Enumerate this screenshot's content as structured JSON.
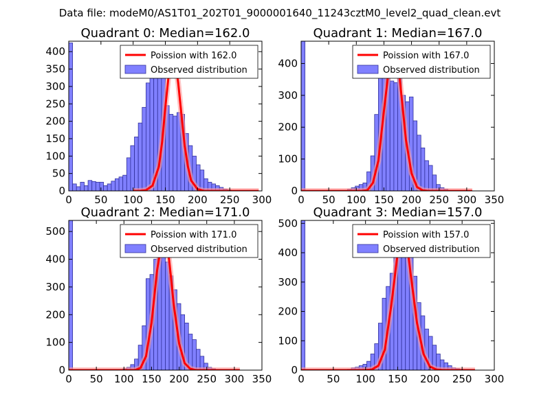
{
  "figure": {
    "suptitle": "Data file: modeM0/AS1T01_202T01_9000001640_11243cztM0_level2_quad_clean.evt"
  },
  "legend": {
    "poisson_prefix": "Poission with ",
    "observed": "Observed distribution"
  },
  "colors": {
    "bar_fill": "#8080ff",
    "bar_edge": "#30309a",
    "poisson_line": "#ff0000",
    "poisson_line_faint": "#ff9999"
  },
  "chart_data": [
    {
      "type": "bar",
      "title": "Quadrant 0: Median=162.0",
      "median_label": "162.0",
      "xlim": [
        0,
        300
      ],
      "ylim": [
        0,
        430
      ],
      "xticks": [
        "0",
        "50",
        "100",
        "150",
        "200",
        "250",
        "300"
      ],
      "yticks": [
        "0",
        "50",
        "100",
        "150",
        "200",
        "250",
        "300",
        "350",
        "400"
      ],
      "ytick_values": [
        0,
        50,
        100,
        150,
        200,
        250,
        300,
        350,
        400
      ],
      "xtick_values": [
        0,
        50,
        100,
        150,
        200,
        250,
        300
      ],
      "bin_width": 6,
      "bin_starts": [
        0,
        6,
        12,
        18,
        24,
        30,
        36,
        42,
        48,
        54,
        60,
        66,
        72,
        78,
        84,
        90,
        96,
        102,
        108,
        114,
        120,
        126,
        132,
        138,
        144,
        150,
        156,
        162,
        168,
        174,
        180,
        186,
        192,
        198,
        204,
        210,
        216,
        222,
        228,
        234,
        240,
        246,
        252,
        258,
        264,
        270,
        276
      ],
      "bin_counts": [
        425,
        20,
        12,
        25,
        15,
        30,
        27,
        25,
        25,
        15,
        20,
        28,
        35,
        40,
        45,
        95,
        130,
        155,
        195,
        240,
        310,
        370,
        350,
        335,
        325,
        245,
        220,
        215,
        225,
        220,
        165,
        130,
        100,
        75,
        60,
        35,
        25,
        20,
        15,
        10,
        5,
        3,
        2,
        2,
        1,
        1,
        0
      ],
      "poisson_x": [
        100,
        110,
        120,
        130,
        140,
        145,
        150,
        155,
        160,
        162,
        165,
        170,
        175,
        180,
        185,
        190,
        200,
        210,
        220,
        240,
        260,
        280,
        295
      ],
      "poisson_y": [
        0,
        0,
        2,
        15,
        70,
        140,
        240,
        330,
        385,
        390,
        380,
        310,
        220,
        130,
        70,
        30,
        5,
        0,
        0,
        0,
        0,
        0,
        0
      ]
    },
    {
      "type": "bar",
      "title": "Quadrant 1: Median=167.0",
      "median_label": "167.0",
      "xlim": [
        0,
        350
      ],
      "ylim": [
        0,
        470
      ],
      "xticks": [
        "0",
        "50",
        "100",
        "150",
        "200",
        "250",
        "300",
        "350"
      ],
      "yticks": [
        "0",
        "100",
        "200",
        "300",
        "400"
      ],
      "ytick_values": [
        0,
        100,
        200,
        300,
        400
      ],
      "xtick_values": [
        0,
        50,
        100,
        150,
        200,
        250,
        300,
        350
      ],
      "bin_width": 7,
      "bin_starts": [
        0,
        7,
        14,
        21,
        28,
        35,
        42,
        49,
        56,
        63,
        70,
        77,
        84,
        91,
        98,
        105,
        112,
        119,
        126,
        133,
        140,
        147,
        154,
        161,
        168,
        175,
        182,
        189,
        196,
        203,
        210,
        217,
        224,
        231,
        238,
        245,
        252,
        259,
        266,
        273,
        280
      ],
      "bin_counts": [
        470,
        0,
        0,
        0,
        0,
        0,
        0,
        0,
        0,
        0,
        0,
        2,
        5,
        10,
        15,
        20,
        25,
        60,
        110,
        240,
        360,
        410,
        390,
        345,
        340,
        370,
        300,
        280,
        295,
        220,
        175,
        135,
        95,
        80,
        50,
        20,
        10,
        5,
        2,
        1,
        0
      ],
      "poisson_x": [
        0,
        100,
        110,
        120,
        130,
        140,
        150,
        160,
        167,
        175,
        180,
        190,
        200,
        210,
        220,
        230,
        250,
        280,
        310
      ],
      "poisson_y": [
        0,
        0,
        0,
        2,
        25,
        95,
        250,
        400,
        445,
        410,
        330,
        160,
        55,
        12,
        2,
        0,
        0,
        0,
        0
      ]
    },
    {
      "type": "bar",
      "title": "Quadrant 2: Median=171.0",
      "median_label": "171.0",
      "xlim": [
        0,
        350
      ],
      "ylim": [
        0,
        540
      ],
      "xticks": [
        "0",
        "50",
        "100",
        "150",
        "200",
        "250",
        "300",
        "350"
      ],
      "yticks": [
        "0",
        "100",
        "200",
        "300",
        "400",
        "500"
      ],
      "ytick_values": [
        0,
        100,
        200,
        300,
        400,
        500
      ],
      "xtick_values": [
        0,
        50,
        100,
        150,
        200,
        250,
        300,
        350
      ],
      "bin_width": 7,
      "bin_starts": [
        0,
        7,
        14,
        21,
        28,
        35,
        42,
        49,
        56,
        63,
        70,
        77,
        84,
        91,
        98,
        105,
        112,
        119,
        126,
        133,
        140,
        147,
        154,
        161,
        168,
        175,
        182,
        189,
        196,
        203,
        210,
        217,
        224,
        231,
        238,
        245,
        252,
        259,
        266,
        273,
        280
      ],
      "bin_counts": [
        540,
        0,
        0,
        0,
        0,
        0,
        0,
        0,
        0,
        0,
        0,
        0,
        0,
        2,
        5,
        10,
        20,
        40,
        90,
        160,
        330,
        345,
        400,
        450,
        430,
        390,
        340,
        290,
        240,
        200,
        170,
        130,
        110,
        75,
        50,
        25,
        10,
        5,
        2,
        1,
        0
      ],
      "poisson_x": [
        0,
        100,
        110,
        120,
        130,
        140,
        150,
        160,
        171,
        180,
        185,
        190,
        200,
        210,
        220,
        230,
        250,
        280,
        310
      ],
      "poisson_y": [
        0,
        0,
        0,
        0,
        8,
        50,
        170,
        360,
        495,
        430,
        340,
        240,
        95,
        25,
        5,
        0,
        0,
        0,
        0
      ]
    },
    {
      "type": "bar",
      "title": "Quadrant 3: Median=157.0",
      "median_label": "157.0",
      "xlim": [
        0,
        300
      ],
      "ylim": [
        0,
        510
      ],
      "xticks": [
        "0",
        "50",
        "100",
        "150",
        "200",
        "250",
        "300"
      ],
      "yticks": [
        "0",
        "100",
        "200",
        "300",
        "400",
        "500"
      ],
      "ytick_values": [
        0,
        100,
        200,
        300,
        400,
        500
      ],
      "xtick_values": [
        0,
        50,
        100,
        150,
        200,
        250,
        300
      ],
      "bin_width": 6,
      "bin_starts": [
        0,
        6,
        12,
        18,
        24,
        30,
        36,
        42,
        48,
        54,
        60,
        66,
        72,
        78,
        84,
        90,
        96,
        102,
        108,
        114,
        120,
        126,
        132,
        138,
        144,
        150,
        156,
        162,
        168,
        174,
        180,
        186,
        192,
        198,
        204,
        210,
        216,
        222,
        228,
        234,
        240,
        246,
        252,
        258,
        264,
        270
      ],
      "bin_counts": [
        510,
        0,
        0,
        0,
        0,
        0,
        0,
        0,
        0,
        0,
        0,
        0,
        3,
        8,
        10,
        15,
        20,
        30,
        55,
        90,
        160,
        245,
        285,
        330,
        400,
        470,
        430,
        450,
        400,
        320,
        230,
        185,
        140,
        115,
        85,
        55,
        35,
        25,
        15,
        8,
        5,
        3,
        2,
        1,
        0,
        0
      ],
      "poisson_x": [
        0,
        90,
        100,
        110,
        120,
        130,
        140,
        150,
        157,
        165,
        170,
        180,
        190,
        200,
        210,
        220,
        240,
        270
      ],
      "poisson_y": [
        0,
        0,
        0,
        2,
        15,
        70,
        220,
        400,
        480,
        420,
        330,
        160,
        55,
        12,
        2,
        0,
        0,
        0
      ]
    }
  ]
}
